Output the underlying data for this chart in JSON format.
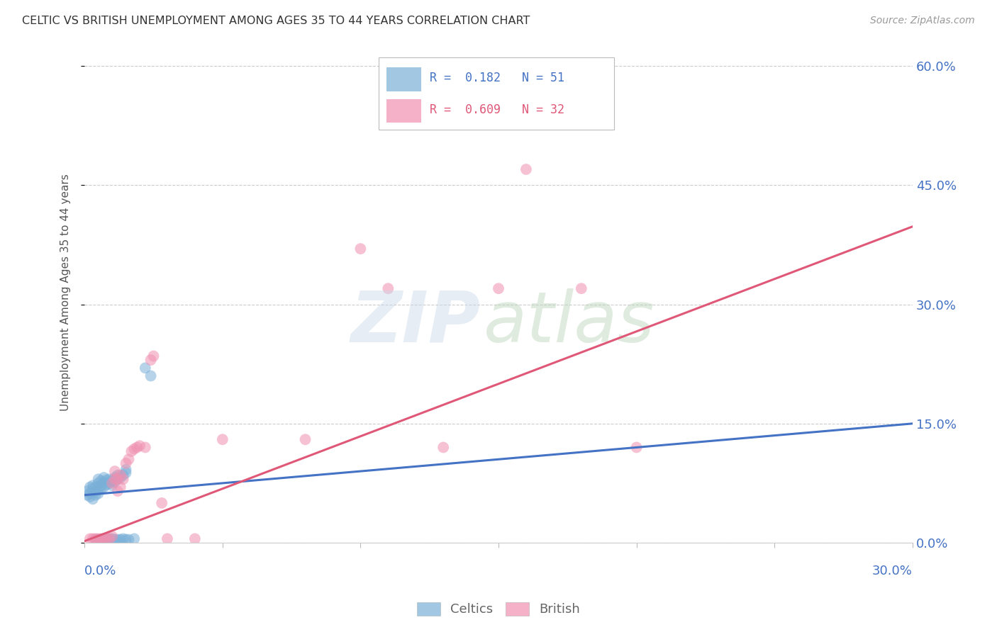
{
  "title": "CELTIC VS BRITISH UNEMPLOYMENT AMONG AGES 35 TO 44 YEARS CORRELATION CHART",
  "source": "Source: ZipAtlas.com",
  "ylabel": "Unemployment Among Ages 35 to 44 years",
  "ytick_labels": [
    "0.0%",
    "15.0%",
    "30.0%",
    "45.0%",
    "60.0%"
  ],
  "ytick_values": [
    0.0,
    0.15,
    0.3,
    0.45,
    0.6
  ],
  "xmin": 0.0,
  "xmax": 0.3,
  "ymin": 0.0,
  "ymax": 0.63,
  "celtics_color": "#7ab0d8",
  "british_color": "#f090b0",
  "celtics_line_color": "#4472c4",
  "british_line_color": "#e05878",
  "celtics_intercept": 0.06,
  "celtics_slope": 0.3,
  "british_intercept": 0.002,
  "british_slope": 1.32,
  "celtics_points": [
    [
      0.001,
      0.06
    ],
    [
      0.001,
      0.065
    ],
    [
      0.002,
      0.058
    ],
    [
      0.002,
      0.062
    ],
    [
      0.002,
      0.07
    ],
    [
      0.003,
      0.068
    ],
    [
      0.003,
      0.072
    ],
    [
      0.003,
      0.055
    ],
    [
      0.004,
      0.06
    ],
    [
      0.004,
      0.065
    ],
    [
      0.004,
      0.07
    ],
    [
      0.005,
      0.062
    ],
    [
      0.005,
      0.067
    ],
    [
      0.005,
      0.075
    ],
    [
      0.005,
      0.08
    ],
    [
      0.006,
      0.068
    ],
    [
      0.006,
      0.072
    ],
    [
      0.006,
      0.078
    ],
    [
      0.007,
      0.07
    ],
    [
      0.007,
      0.076
    ],
    [
      0.007,
      0.082
    ],
    [
      0.008,
      0.073
    ],
    [
      0.008,
      0.079
    ],
    [
      0.009,
      0.075
    ],
    [
      0.009,
      0.08
    ],
    [
      0.01,
      0.072
    ],
    [
      0.01,
      0.078
    ],
    [
      0.011,
      0.077
    ],
    [
      0.011,
      0.082
    ],
    [
      0.012,
      0.08
    ],
    [
      0.012,
      0.085
    ],
    [
      0.013,
      0.082
    ],
    [
      0.014,
      0.085
    ],
    [
      0.015,
      0.088
    ],
    [
      0.015,
      0.092
    ],
    [
      0.004,
      0.004
    ],
    [
      0.005,
      0.004
    ],
    [
      0.006,
      0.004
    ],
    [
      0.007,
      0.005
    ],
    [
      0.008,
      0.005
    ],
    [
      0.009,
      0.005
    ],
    [
      0.01,
      0.005
    ],
    [
      0.011,
      0.004
    ],
    [
      0.012,
      0.004
    ],
    [
      0.013,
      0.004
    ],
    [
      0.014,
      0.005
    ],
    [
      0.015,
      0.004
    ],
    [
      0.016,
      0.004
    ],
    [
      0.018,
      0.005
    ],
    [
      0.022,
      0.22
    ],
    [
      0.024,
      0.21
    ]
  ],
  "british_points": [
    [
      0.002,
      0.005
    ],
    [
      0.003,
      0.005
    ],
    [
      0.004,
      0.005
    ],
    [
      0.005,
      0.005
    ],
    [
      0.006,
      0.005
    ],
    [
      0.007,
      0.005
    ],
    [
      0.008,
      0.005
    ],
    [
      0.009,
      0.005
    ],
    [
      0.01,
      0.008
    ],
    [
      0.01,
      0.075
    ],
    [
      0.011,
      0.08
    ],
    [
      0.011,
      0.09
    ],
    [
      0.012,
      0.065
    ],
    [
      0.012,
      0.08
    ],
    [
      0.013,
      0.07
    ],
    [
      0.013,
      0.085
    ],
    [
      0.014,
      0.08
    ],
    [
      0.015,
      0.1
    ],
    [
      0.016,
      0.105
    ],
    [
      0.017,
      0.115
    ],
    [
      0.018,
      0.118
    ],
    [
      0.019,
      0.12
    ],
    [
      0.02,
      0.122
    ],
    [
      0.022,
      0.12
    ],
    [
      0.024,
      0.23
    ],
    [
      0.025,
      0.235
    ],
    [
      0.028,
      0.05
    ],
    [
      0.03,
      0.005
    ],
    [
      0.04,
      0.005
    ],
    [
      0.05,
      0.13
    ],
    [
      0.08,
      0.13
    ],
    [
      0.1,
      0.37
    ],
    [
      0.11,
      0.32
    ],
    [
      0.13,
      0.12
    ],
    [
      0.15,
      0.32
    ],
    [
      0.16,
      0.47
    ],
    [
      0.18,
      0.32
    ],
    [
      0.2,
      0.12
    ]
  ]
}
